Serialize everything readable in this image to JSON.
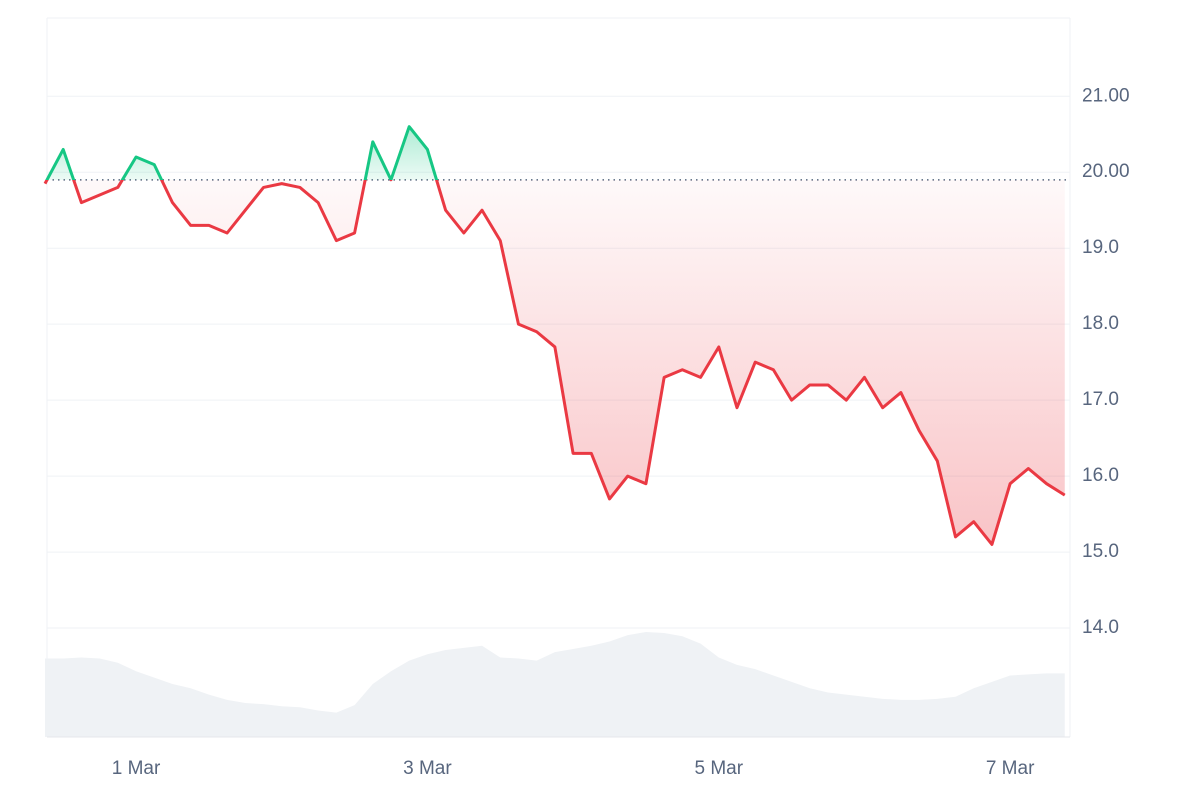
{
  "chart_data": {
    "type": "line",
    "categories": [
      null,
      null,
      null,
      null,
      null,
      "1 Mar",
      null,
      null,
      null,
      null,
      null,
      null,
      null,
      null,
      null,
      null,
      null,
      null,
      null,
      null,
      null,
      "3 Mar",
      null,
      null,
      null,
      null,
      null,
      null,
      null,
      null,
      null,
      null,
      null,
      null,
      null,
      null,
      null,
      "5 Mar",
      null,
      null,
      null,
      null,
      null,
      null,
      null,
      null,
      null,
      null,
      null,
      null,
      null,
      null,
      null,
      "7 Mar",
      null,
      null,
      null
    ],
    "values": [
      19.85,
      20.3,
      19.6,
      19.7,
      19.8,
      20.2,
      20.1,
      19.6,
      19.3,
      19.3,
      19.2,
      19.5,
      19.8,
      19.85,
      19.8,
      19.6,
      19.1,
      19.2,
      20.4,
      19.9,
      20.6,
      20.3,
      19.5,
      19.2,
      19.5,
      19.1,
      18.0,
      17.9,
      17.7,
      16.3,
      16.3,
      15.7,
      16.0,
      15.9,
      17.3,
      17.4,
      17.3,
      17.7,
      16.9,
      17.5,
      17.4,
      17.0,
      17.2,
      17.2,
      17.0,
      17.3,
      16.9,
      17.1,
      16.6,
      16.2,
      15.2,
      15.4,
      15.1,
      15.9,
      16.1,
      15.9,
      15.75
    ],
    "volume": [
      74,
      74,
      75,
      74,
      70,
      62,
      56,
      50,
      46,
      40,
      35,
      32,
      31,
      29,
      28,
      25,
      23,
      30,
      50,
      62,
      72,
      78,
      82,
      84,
      86,
      75,
      74,
      72,
      80,
      83,
      86,
      90,
      96,
      99,
      98,
      95,
      88,
      75,
      68,
      64,
      58,
      52,
      46,
      42,
      40,
      38,
      36,
      35,
      35,
      36,
      38,
      46,
      52,
      58,
      59,
      60,
      60
    ],
    "baseline": 19.9,
    "up_color": "#16c784",
    "down_color": "#ea3943",
    "volume_color": "#eff2f5",
    "ylim": [
      12.566,
      22.03
    ],
    "yticks": [
      {
        "value": 14,
        "label": "14.0"
      },
      {
        "value": 15,
        "label": "15.0"
      },
      {
        "value": 16,
        "label": "16.0"
      },
      {
        "value": 17,
        "label": "17.0"
      },
      {
        "value": 18,
        "label": "18.0"
      },
      {
        "value": 19,
        "label": "19.0"
      },
      {
        "value": 20,
        "label": "20.00"
      },
      {
        "value": 21,
        "label": "21.00"
      }
    ],
    "grid": true
  }
}
